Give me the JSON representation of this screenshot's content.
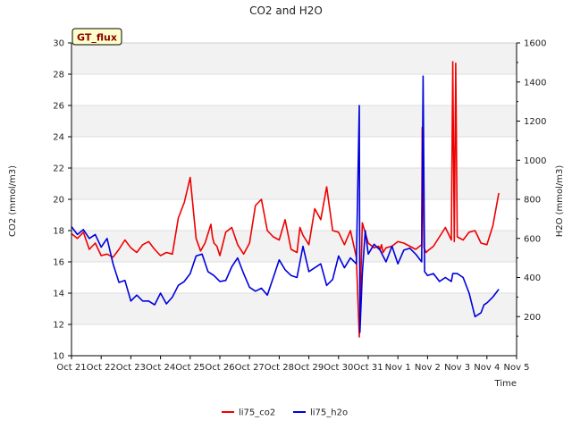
{
  "chart_data": {
    "type": "line",
    "title": "CO2 and H2O",
    "badge": "GT_flux",
    "xlabel": "Time",
    "ylabel_left": "CO2 (mmol/m3)",
    "ylabel_right": "H2O (mmol/m3)",
    "xlim": [
      0,
      15
    ],
    "x_tick_labels": [
      "Oct 21",
      "Oct 22",
      "Oct 23",
      "Oct 24",
      "Oct 25",
      "Oct 26",
      "Oct 27",
      "Oct 28",
      "Oct 29",
      "Oct 30",
      "Oct 31",
      "Nov 1",
      "Nov 2",
      "Nov 3",
      "Nov 4",
      "Nov 5"
    ],
    "ylim_left": [
      10,
      30
    ],
    "yticks_left": [
      10,
      12,
      14,
      16,
      18,
      20,
      22,
      24,
      26,
      28,
      30
    ],
    "ylim_right": [
      0,
      1600
    ],
    "yticks_right": [
      200,
      400,
      600,
      800,
      1000,
      1200,
      1400,
      1600
    ],
    "legend_position": "bottom-center",
    "grid": "alternating horizontal bands",
    "series": [
      {
        "name": "li75_co2",
        "axis": "left",
        "color": "#ee0000",
        "x": [
          0.0,
          0.2,
          0.4,
          0.6,
          0.8,
          1.0,
          1.2,
          1.4,
          1.6,
          1.8,
          2.0,
          2.2,
          2.4,
          2.6,
          2.8,
          3.0,
          3.2,
          3.4,
          3.6,
          3.8,
          4.0,
          4.2,
          4.35,
          4.5,
          4.6,
          4.7,
          4.75,
          4.8,
          4.9,
          5.0,
          5.2,
          5.4,
          5.6,
          5.8,
          6.0,
          6.2,
          6.4,
          6.6,
          6.8,
          7.0,
          7.2,
          7.4,
          7.6,
          7.7,
          7.8,
          7.9,
          8.0,
          8.2,
          8.4,
          8.6,
          8.8,
          9.0,
          9.2,
          9.4,
          9.6,
          9.7,
          9.8,
          10.0,
          10.2,
          10.35,
          10.4,
          10.45,
          10.5,
          10.6,
          10.8,
          11.0,
          11.2,
          11.4,
          11.6,
          11.8,
          11.82,
          11.88,
          11.95,
          12.0,
          12.2,
          12.4,
          12.6,
          12.8,
          12.85,
          12.9,
          12.95,
          13.0,
          13.2,
          13.4,
          13.6,
          13.8,
          14.0,
          14.2,
          14.4
        ],
        "values": [
          17.8,
          17.5,
          17.9,
          16.8,
          17.2,
          16.4,
          16.5,
          16.3,
          16.8,
          17.4,
          16.9,
          16.6,
          17.1,
          17.3,
          16.8,
          16.4,
          16.6,
          16.5,
          18.8,
          19.8,
          21.4,
          17.5,
          16.7,
          17.2,
          17.8,
          18.4,
          17.6,
          17.2,
          17.0,
          16.4,
          17.9,
          18.2,
          17.1,
          16.5,
          17.2,
          19.6,
          20.0,
          18.0,
          17.6,
          17.4,
          18.7,
          16.8,
          16.6,
          18.2,
          17.7,
          17.4,
          17.1,
          19.4,
          18.7,
          20.8,
          18.0,
          17.9,
          17.1,
          18.0,
          16.3,
          11.2,
          18.5,
          17.2,
          16.9,
          17.0,
          16.8,
          17.1,
          16.6,
          16.9,
          17.0,
          17.3,
          17.2,
          17.0,
          16.8,
          17.1,
          24.6,
          16.9,
          16.6,
          16.7,
          17.0,
          17.6,
          18.2,
          17.4,
          28.8,
          17.3,
          28.7,
          17.6,
          17.4,
          17.9,
          18.0,
          17.2,
          17.1,
          18.3,
          20.4
        ]
      },
      {
        "name": "li75_h2o",
        "axis": "right",
        "color": "#0000dd",
        "x": [
          0.0,
          0.2,
          0.4,
          0.6,
          0.8,
          1.0,
          1.2,
          1.4,
          1.6,
          1.8,
          2.0,
          2.2,
          2.4,
          2.6,
          2.8,
          3.0,
          3.2,
          3.4,
          3.6,
          3.8,
          4.0,
          4.2,
          4.4,
          4.6,
          4.8,
          5.0,
          5.2,
          5.4,
          5.6,
          5.8,
          6.0,
          6.2,
          6.4,
          6.6,
          6.8,
          7.0,
          7.2,
          7.4,
          7.6,
          7.8,
          8.0,
          8.2,
          8.4,
          8.6,
          8.8,
          9.0,
          9.2,
          9.4,
          9.6,
          9.7,
          9.72,
          9.8,
          9.9,
          10.0,
          10.2,
          10.4,
          10.6,
          10.8,
          11.0,
          11.2,
          11.4,
          11.6,
          11.8,
          11.85,
          11.9,
          12.0,
          12.2,
          12.4,
          12.6,
          12.8,
          12.85,
          13.0,
          13.2,
          13.4,
          13.6,
          13.8,
          13.9,
          14.0,
          14.2,
          14.4
        ],
        "values": [
          660,
          620,
          645,
          600,
          620,
          555,
          600,
          470,
          375,
          385,
          280,
          310,
          280,
          280,
          260,
          320,
          265,
          300,
          360,
          380,
          420,
          510,
          520,
          430,
          410,
          380,
          385,
          455,
          500,
          420,
          350,
          330,
          345,
          310,
          400,
          490,
          440,
          410,
          400,
          560,
          430,
          450,
          470,
          360,
          390,
          510,
          450,
          500,
          470,
          1280,
          120,
          420,
          640,
          520,
          570,
          540,
          480,
          560,
          470,
          540,
          550,
          520,
          480,
          1430,
          430,
          410,
          420,
          380,
          400,
          380,
          420,
          420,
          400,
          320,
          200,
          220,
          260,
          270,
          300,
          340
        ]
      }
    ]
  }
}
